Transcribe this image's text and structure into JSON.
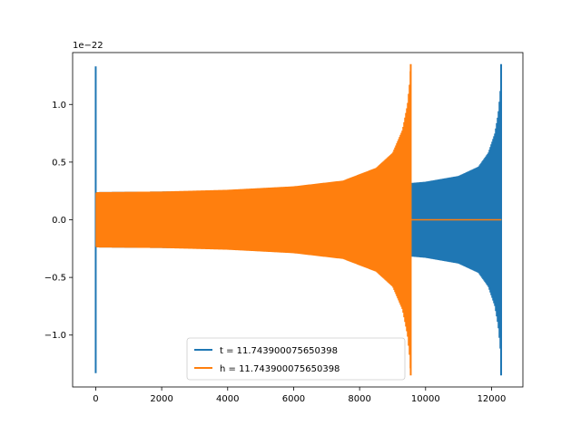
{
  "chart_data": {
    "type": "line",
    "title": "",
    "xlabel": "",
    "ylabel": "",
    "y_offset_label": "1e−22",
    "xlim": [
      -700,
      12950
    ],
    "ylim": [
      -1.45,
      1.45
    ],
    "x_ticks": [
      0,
      2000,
      4000,
      6000,
      8000,
      10000,
      12000
    ],
    "x_tick_labels": [
      "0",
      "2000",
      "4000",
      "6000",
      "8000",
      "10000",
      "12000"
    ],
    "y_ticks": [
      -1.0,
      -0.5,
      0.0,
      0.5,
      1.0
    ],
    "y_tick_labels": [
      "−1.0",
      "−0.5",
      "0.0",
      "0.5",
      "1.0"
    ],
    "grid": false,
    "legend_position": "lower center",
    "series": [
      {
        "name": "t = 11.743900075650398",
        "color": "#1f77b4",
        "start_spike": {
          "x": 0,
          "min": -1.33,
          "max": 1.33
        },
        "envelope": [
          {
            "x": 30,
            "amp": 0.24
          },
          {
            "x": 2000,
            "amp": 0.245
          },
          {
            "x": 4000,
            "amp": 0.25
          },
          {
            "x": 6000,
            "amp": 0.26
          },
          {
            "x": 8000,
            "amp": 0.29
          },
          {
            "x": 9600,
            "amp": 0.32
          },
          {
            "x": 10000,
            "amp": 0.33
          },
          {
            "x": 11000,
            "amp": 0.38
          },
          {
            "x": 11600,
            "amp": 0.46
          },
          {
            "x": 11900,
            "amp": 0.58
          },
          {
            "x": 12100,
            "amp": 0.75
          },
          {
            "x": 12200,
            "amp": 0.92
          },
          {
            "x": 12260,
            "amp": 1.1
          },
          {
            "x": 12290,
            "amp": 1.35
          },
          {
            "x": 12300,
            "amp": 0
          }
        ],
        "end_value": 0.0,
        "end_x": 12300
      },
      {
        "name": "h = 11.743900075650398",
        "color": "#ff7f0e",
        "start_spike": null,
        "envelope": [
          {
            "x": 0,
            "amp": 0.23
          },
          {
            "x": 30,
            "amp": 0.24
          },
          {
            "x": 2000,
            "amp": 0.245
          },
          {
            "x": 4000,
            "amp": 0.26
          },
          {
            "x": 6000,
            "amp": 0.29
          },
          {
            "x": 7500,
            "amp": 0.34
          },
          {
            "x": 8500,
            "amp": 0.45
          },
          {
            "x": 9000,
            "amp": 0.58
          },
          {
            "x": 9300,
            "amp": 0.78
          },
          {
            "x": 9450,
            "amp": 1.0
          },
          {
            "x": 9520,
            "amp": 1.2
          },
          {
            "x": 9550,
            "amp": 1.35
          },
          {
            "x": 9560,
            "amp": 0
          }
        ],
        "end_value": 0.0,
        "end_x": 12300
      }
    ]
  }
}
